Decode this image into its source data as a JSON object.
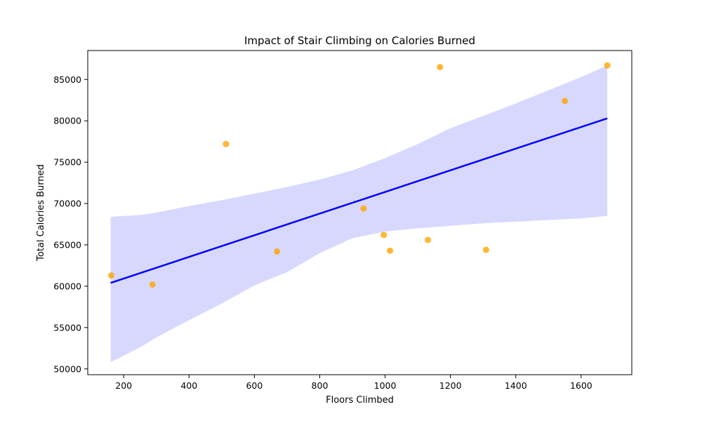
{
  "chart_data": {
    "type": "scatter",
    "title": "Impact of Stair Climbing on Calories Burned",
    "xlabel": "Floors Climbed",
    "ylabel": "Total Calories Burned",
    "xlim": [
      90,
      1755
    ],
    "ylim": [
      49300,
      88500
    ],
    "xticks": [
      200,
      400,
      600,
      800,
      1000,
      1200,
      1400,
      1600
    ],
    "yticks": [
      50000,
      55000,
      60000,
      65000,
      70000,
      75000,
      80000,
      85000
    ],
    "grid": false,
    "legend": "none",
    "point_color": "#ffa500",
    "line_color": "#0000ff",
    "band_color": "#d8d8ff",
    "points": [
      {
        "x": 162,
        "y": 61300
      },
      {
        "x": 288,
        "y": 60200
      },
      {
        "x": 513,
        "y": 77200
      },
      {
        "x": 669,
        "y": 64200
      },
      {
        "x": 934,
        "y": 69400
      },
      {
        "x": 996,
        "y": 66200
      },
      {
        "x": 1015,
        "y": 64300
      },
      {
        "x": 1131,
        "y": 65600
      },
      {
        "x": 1168,
        "y": 86500
      },
      {
        "x": 1309,
        "y": 64400
      },
      {
        "x": 1550,
        "y": 82400
      },
      {
        "x": 1680,
        "y": 86700
      }
    ],
    "regression": {
      "x": [
        160,
        1680
      ],
      "y": [
        60400,
        80300
      ]
    },
    "confidence_band": {
      "x": [
        160,
        250,
        300,
        400,
        500,
        600,
        700,
        800,
        900,
        1000,
        1100,
        1200,
        1300,
        1400,
        1500,
        1600,
        1680
      ],
      "lower": [
        50800,
        52600,
        53800,
        55900,
        57900,
        60100,
        61700,
        64000,
        65800,
        66600,
        67000,
        67300,
        67600,
        67800,
        68000,
        68200,
        68500
      ],
      "upper": [
        68400,
        68600,
        68900,
        69700,
        70400,
        71200,
        72000,
        72900,
        74000,
        75500,
        77200,
        79100,
        80600,
        82100,
        83700,
        85300,
        86700
      ]
    }
  }
}
